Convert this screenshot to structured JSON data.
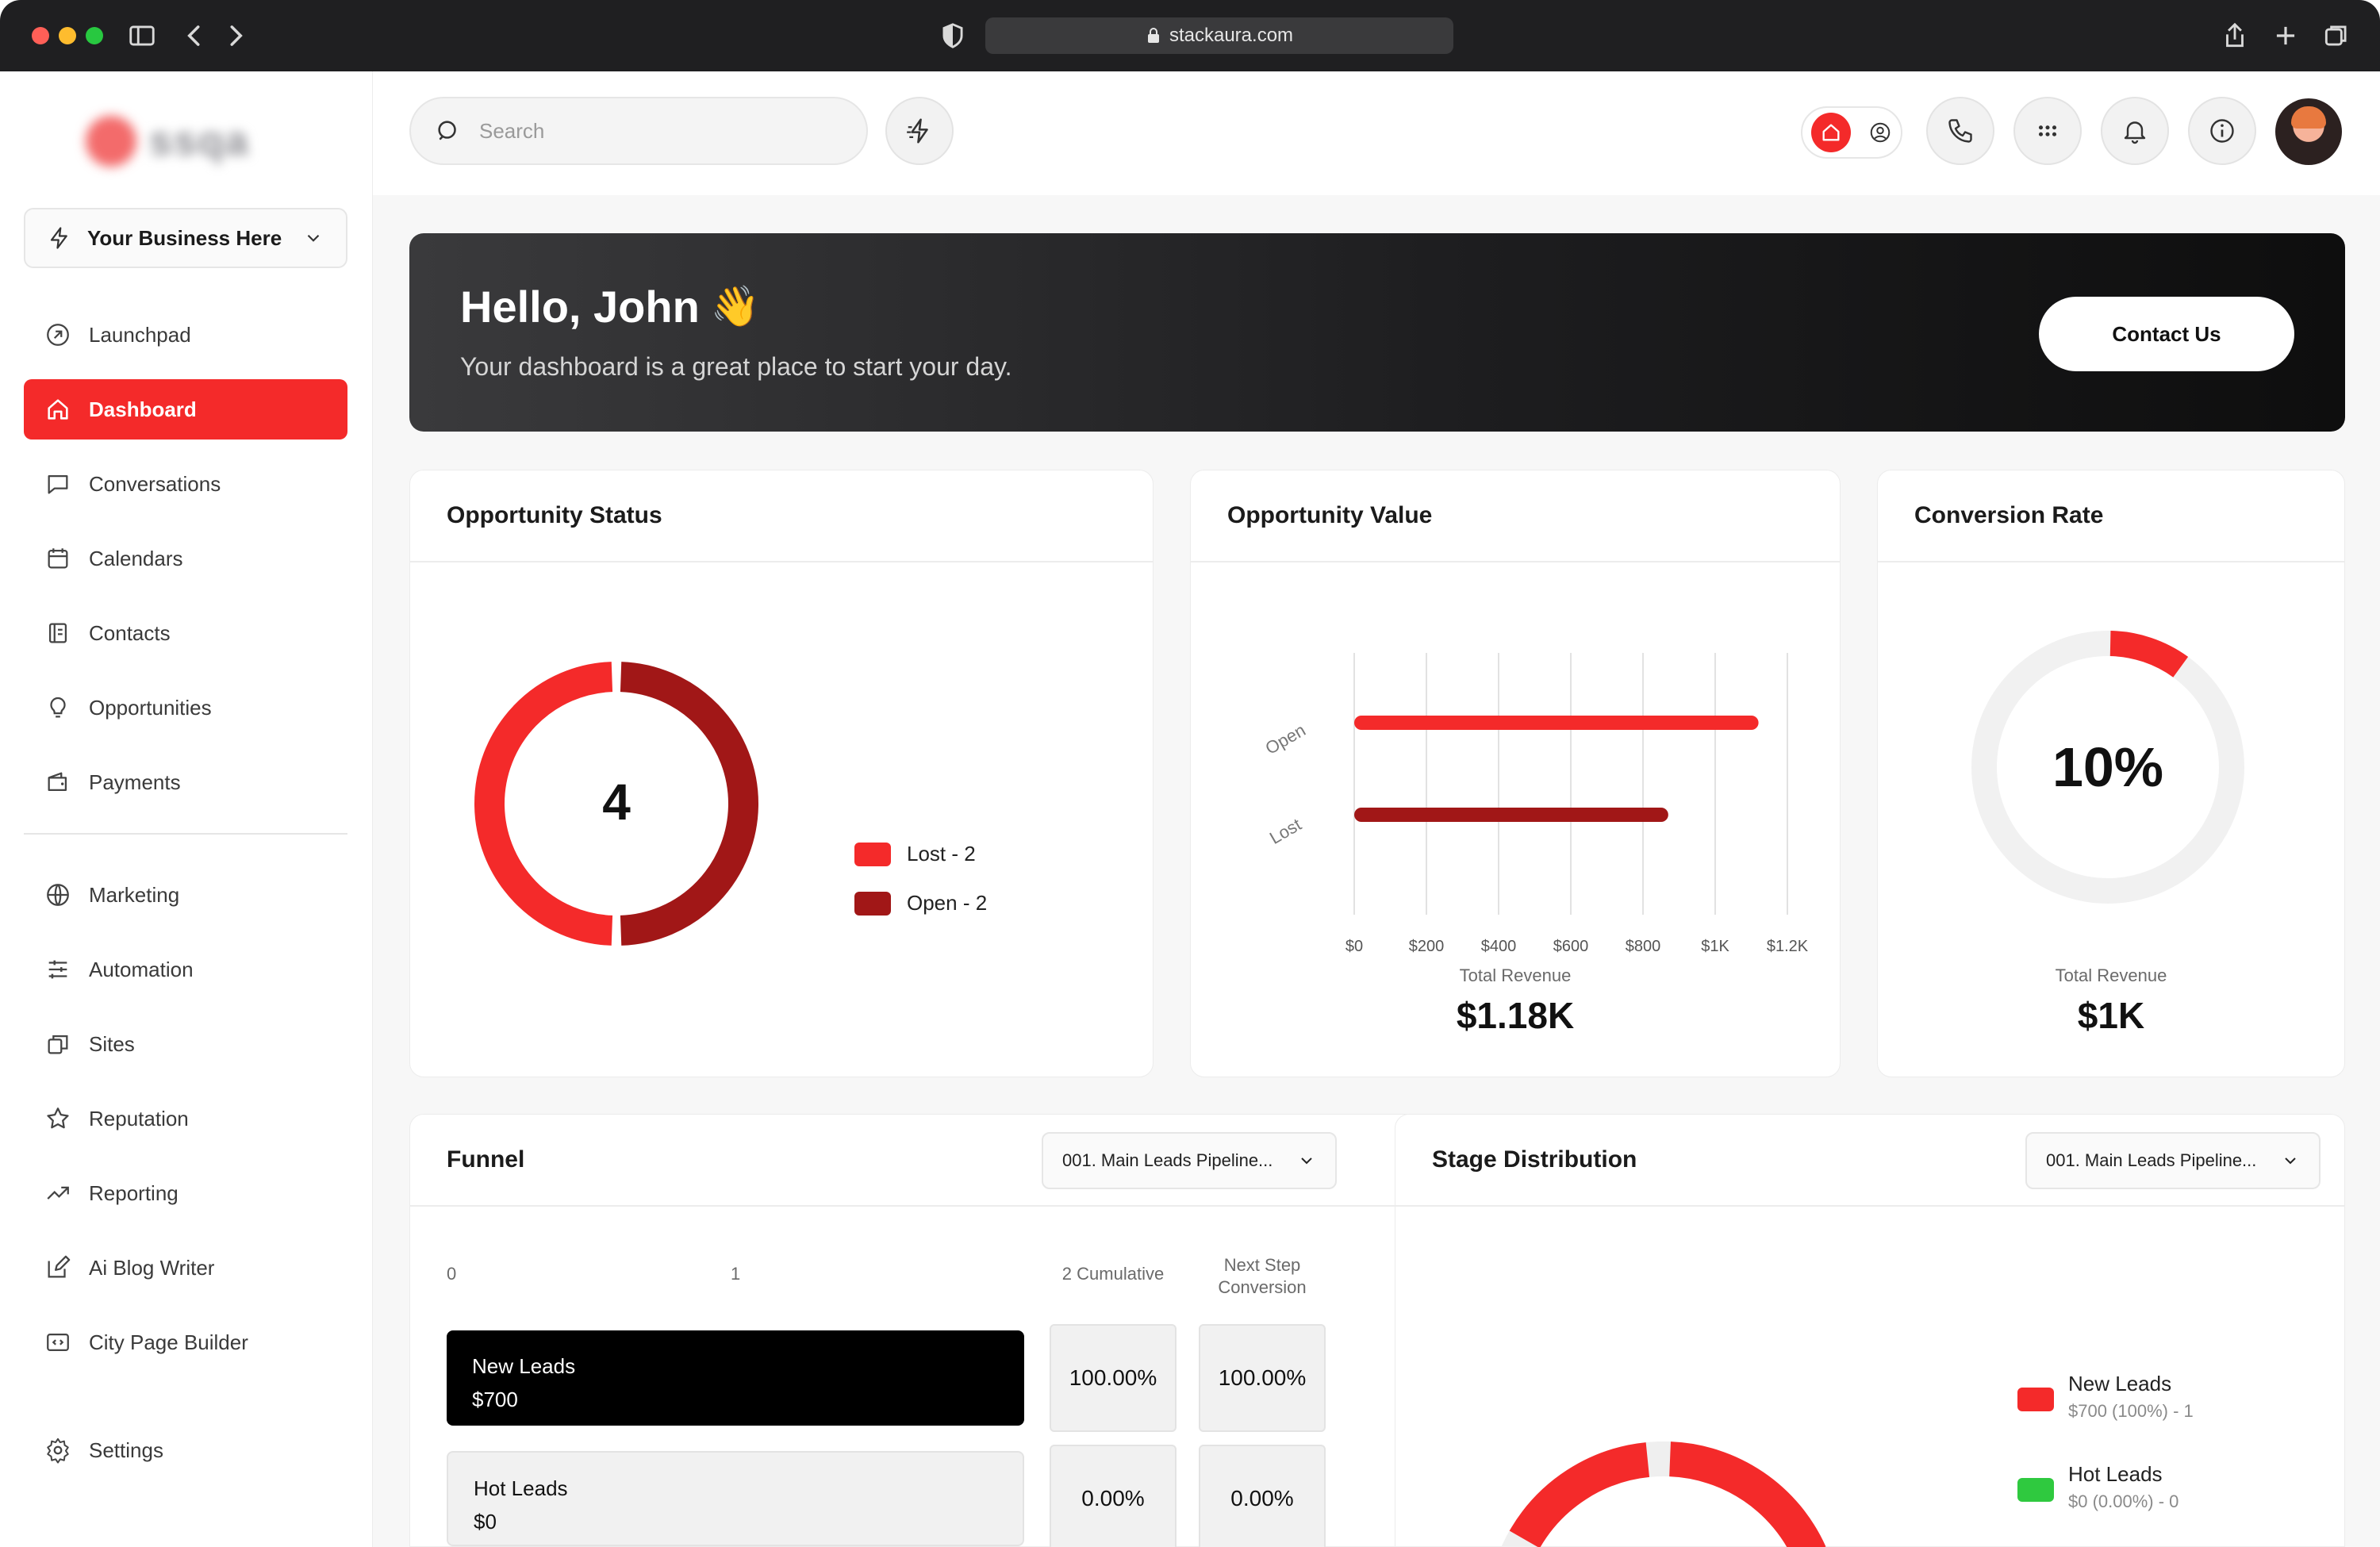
{
  "browser": {
    "url": "stackaura.com"
  },
  "sidebar": {
    "logo_text": "ssqa",
    "business": "Your Business Here",
    "items": [
      {
        "label": "Launchpad"
      },
      {
        "label": "Dashboard"
      },
      {
        "label": "Conversations"
      },
      {
        "label": "Calendars"
      },
      {
        "label": "Contacts"
      },
      {
        "label": "Opportunities"
      },
      {
        "label": "Payments"
      },
      {
        "label": "Marketing"
      },
      {
        "label": "Automation"
      },
      {
        "label": "Sites"
      },
      {
        "label": "Reputation"
      },
      {
        "label": "Reporting"
      },
      {
        "label": "Ai Blog Writer"
      },
      {
        "label": "City Page Builder"
      },
      {
        "label": "Settings"
      }
    ]
  },
  "topbar": {
    "search_placeholder": "Search"
  },
  "hero": {
    "title": "Hello, John",
    "emoji": "👋",
    "subtitle": "Your dashboard is a great place to start your day.",
    "contact_label": "Contact Us"
  },
  "colors": {
    "accent": "#f42a2a",
    "dark_red": "#a11717",
    "green": "#2fc93f"
  },
  "opportunity_status": {
    "title": "Opportunity Status",
    "center": "4",
    "legend": [
      {
        "label": "Lost - 2",
        "color": "#f42a2a"
      },
      {
        "label": "Open - 2",
        "color": "#a11717"
      }
    ]
  },
  "opportunity_value": {
    "title": "Opportunity Value",
    "stat_label": "Total Revenue",
    "stat_value": "$1.18K"
  },
  "conversion": {
    "title": "Conversion Rate",
    "center": "10%",
    "percent": 10,
    "stat_label": "Total Revenue",
    "stat_value": "$1K"
  },
  "funnel": {
    "title": "Funnel",
    "pipeline": "001. Main Leads Pipeline...",
    "col_0": "0",
    "col_1": "1",
    "col_cumulative": "2 Cumulative",
    "col_next_step_1": "Next Step",
    "col_next_step_2": "Conversion",
    "stages": [
      {
        "name": "New Leads",
        "value": "$700",
        "cumulative": "100.00%",
        "next": "100.00%"
      },
      {
        "name": "Hot Leads",
        "value": "$0",
        "cumulative": "0.00%",
        "next": "0.00%"
      }
    ]
  },
  "stage_distribution": {
    "title": "Stage Distribution",
    "pipeline": "001. Main Leads Pipeline...",
    "legend": [
      {
        "name": "New Leads",
        "detail": "$700 (100%) - 1",
        "color": "#f42a2a"
      },
      {
        "name": "Hot Leads",
        "detail": "$0 (0.00%) - 0",
        "color": "#2fc93f"
      }
    ]
  },
  "chart_data": [
    {
      "type": "pie",
      "title": "Opportunity Status",
      "categories": [
        "Lost",
        "Open"
      ],
      "values": [
        2,
        2
      ]
    },
    {
      "type": "bar",
      "orientation": "horizontal",
      "title": "Opportunity Value",
      "categories": [
        "Open",
        "Lost"
      ],
      "values": [
        1120,
        870
      ],
      "xlim": [
        0,
        1200
      ],
      "x_ticks": [
        "$0",
        "$200",
        "$400",
        "$600",
        "$800",
        "$1K",
        "$1.2K"
      ],
      "grid": true
    },
    {
      "type": "pie",
      "title": "Stage Distribution",
      "categories": [
        "New Leads",
        "Hot Leads"
      ],
      "values": [
        700,
        0
      ]
    }
  ]
}
